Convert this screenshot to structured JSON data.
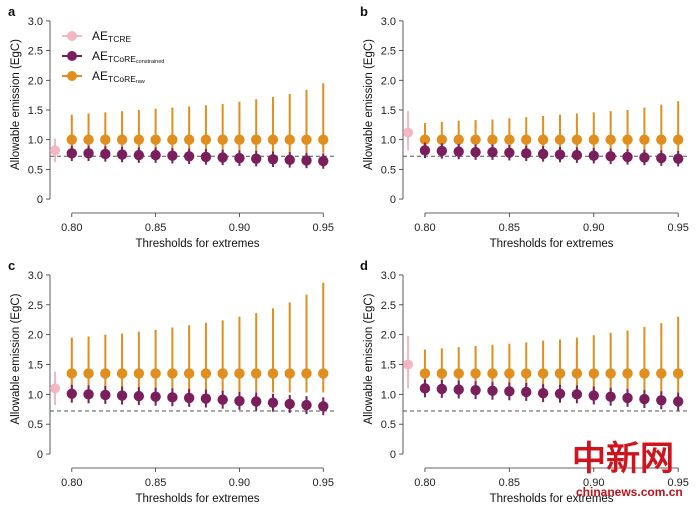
{
  "colors": {
    "tcre": "#f4b6c2",
    "constrained": "#7a1f5c",
    "raw": "#e08e1e",
    "reference_line": "#555555",
    "axis": "#333333"
  },
  "watermark": {
    "chinese": "中新网",
    "url": "chinanews.com.cn"
  },
  "legend": {
    "items": [
      {
        "key": "tcre",
        "main": "AE",
        "sub": "TCRE",
        "sub_style": "normal",
        "color": "#f4b6c2"
      },
      {
        "key": "constrained",
        "main": "AE",
        "sub": "TCoRE",
        "subsub": "constrained",
        "color": "#7a1f5c"
      },
      {
        "key": "raw",
        "main": "AE",
        "sub": "TCoRE",
        "subsub": "raw",
        "color": "#e08e1e"
      }
    ]
  },
  "chart_data": [
    {
      "panel": "a",
      "type": "scatter",
      "xlabel": "Thresholds for extremes",
      "ylabel": "Allowable emission (EgC)",
      "xlim": [
        0.787,
        0.957
      ],
      "ylim": [
        -0.1,
        3.15
      ],
      "xticks": [
        "0.80",
        "0.85",
        "0.90",
        "0.95"
      ],
      "yticks": [
        "0",
        "0.5",
        "1.0",
        "1.5",
        "2.0",
        "2.5",
        "3.0"
      ],
      "reference_line": 0.72,
      "tcre": {
        "x": 0.79,
        "y": 0.82,
        "low": 0.62,
        "high": 1.02
      },
      "x": [
        0.8,
        0.805,
        0.81,
        0.815,
        0.82,
        0.825,
        0.83,
        0.835,
        0.84,
        0.845,
        0.85,
        0.855,
        0.86,
        0.865,
        0.87,
        0.875,
        0.88,
        0.885,
        0.89,
        0.895,
        0.9,
        0.905,
        0.91,
        0.915,
        0.92,
        0.925,
        0.93,
        0.935,
        0.94,
        0.945,
        0.95
      ],
      "series": [
        {
          "key": "raw",
          "values": [
            1.0,
            1.0,
            1.0,
            1.0,
            1.0,
            1.0,
            1.0,
            1.0,
            1.0,
            1.0,
            1.0,
            1.0,
            1.0,
            1.0,
            1.0,
            1.0,
            1.0,
            1.0,
            1.0,
            1.0,
            1.0,
            1.0,
            1.0,
            1.0,
            1.0,
            1.0,
            1.0,
            1.0,
            1.0,
            1.0,
            1.0
          ],
          "low": [
            0.78,
            0.78,
            0.78,
            0.78,
            0.78,
            0.78,
            0.78,
            0.78,
            0.78,
            0.78,
            0.78,
            0.78,
            0.78,
            0.78,
            0.78,
            0.78,
            0.78,
            0.78,
            0.78,
            0.78,
            0.78,
            0.78,
            0.78,
            0.78,
            0.78,
            0.78,
            0.78,
            0.78,
            0.78,
            0.78,
            0.78
          ],
          "high": [
            1.42,
            1.43,
            1.44,
            1.45,
            1.46,
            1.47,
            1.48,
            1.49,
            1.5,
            1.51,
            1.52,
            1.53,
            1.54,
            1.55,
            1.56,
            1.57,
            1.58,
            1.59,
            1.6,
            1.62,
            1.64,
            1.66,
            1.68,
            1.7,
            1.72,
            1.74,
            1.77,
            1.8,
            1.84,
            1.89,
            1.95
          ]
        },
        {
          "key": "constrained",
          "values": [
            0.77,
            0.77,
            0.77,
            0.76,
            0.76,
            0.75,
            0.75,
            0.75,
            0.74,
            0.74,
            0.74,
            0.73,
            0.73,
            0.73,
            0.72,
            0.72,
            0.71,
            0.71,
            0.7,
            0.7,
            0.69,
            0.69,
            0.68,
            0.68,
            0.67,
            0.67,
            0.66,
            0.66,
            0.65,
            0.65,
            0.64
          ],
          "low": [
            0.64,
            0.64,
            0.64,
            0.63,
            0.63,
            0.62,
            0.62,
            0.62,
            0.61,
            0.61,
            0.61,
            0.6,
            0.6,
            0.6,
            0.59,
            0.59,
            0.58,
            0.58,
            0.57,
            0.57,
            0.56,
            0.56,
            0.55,
            0.55,
            0.54,
            0.54,
            0.53,
            0.53,
            0.52,
            0.52,
            0.51
          ],
          "high": [
            0.9,
            0.9,
            0.9,
            0.89,
            0.89,
            0.88,
            0.88,
            0.88,
            0.87,
            0.87,
            0.87,
            0.86,
            0.86,
            0.86,
            0.85,
            0.85,
            0.84,
            0.84,
            0.83,
            0.83,
            0.82,
            0.82,
            0.81,
            0.81,
            0.8,
            0.8,
            0.79,
            0.79,
            0.78,
            0.78,
            0.77
          ]
        }
      ]
    },
    {
      "panel": "b",
      "type": "scatter",
      "xlabel": "Thresholds for extremes",
      "ylabel": "Allowable emission (EgC)",
      "xlim": [
        0.787,
        0.957
      ],
      "ylim": [
        -0.1,
        3.15
      ],
      "xticks": [
        "0.80",
        "0.85",
        "0.90",
        "0.95"
      ],
      "yticks": [
        "0",
        "0.5",
        "1.0",
        "1.5",
        "2.0",
        "2.5",
        "3.0"
      ],
      "reference_line": 0.72,
      "tcre": {
        "x": 0.79,
        "y": 1.12,
        "low": 0.82,
        "high": 1.48
      },
      "x": [
        0.8,
        0.805,
        0.81,
        0.815,
        0.82,
        0.825,
        0.83,
        0.835,
        0.84,
        0.845,
        0.85,
        0.855,
        0.86,
        0.865,
        0.87,
        0.875,
        0.88,
        0.885,
        0.89,
        0.895,
        0.9,
        0.905,
        0.91,
        0.915,
        0.92,
        0.925,
        0.93,
        0.935,
        0.94,
        0.945,
        0.95
      ],
      "series": [
        {
          "key": "raw",
          "values": [
            1.0,
            1.0,
            1.0,
            1.0,
            1.0,
            1.0,
            1.0,
            1.0,
            1.0,
            1.0,
            1.0,
            1.0,
            1.0,
            1.0,
            1.0,
            1.0,
            1.0,
            1.0,
            1.0,
            1.0,
            1.0,
            1.0,
            1.0,
            1.0,
            1.0,
            1.0,
            1.0,
            1.0,
            1.0,
            1.0,
            1.0
          ],
          "low": [
            0.78,
            0.78,
            0.78,
            0.78,
            0.78,
            0.78,
            0.78,
            0.78,
            0.78,
            0.78,
            0.78,
            0.78,
            0.78,
            0.78,
            0.78,
            0.78,
            0.78,
            0.78,
            0.78,
            0.78,
            0.78,
            0.78,
            0.78,
            0.78,
            0.78,
            0.78,
            0.78,
            0.78,
            0.78,
            0.78,
            0.78
          ],
          "high": [
            1.28,
            1.29,
            1.3,
            1.31,
            1.32,
            1.32,
            1.33,
            1.33,
            1.34,
            1.35,
            1.36,
            1.37,
            1.38,
            1.39,
            1.4,
            1.41,
            1.42,
            1.43,
            1.44,
            1.45,
            1.46,
            1.47,
            1.48,
            1.49,
            1.5,
            1.52,
            1.54,
            1.56,
            1.59,
            1.62,
            1.65
          ]
        },
        {
          "key": "constrained",
          "values": [
            0.82,
            0.82,
            0.81,
            0.81,
            0.8,
            0.8,
            0.79,
            0.79,
            0.79,
            0.78,
            0.78,
            0.78,
            0.77,
            0.77,
            0.76,
            0.76,
            0.75,
            0.75,
            0.74,
            0.74,
            0.73,
            0.73,
            0.72,
            0.72,
            0.71,
            0.71,
            0.7,
            0.7,
            0.69,
            0.69,
            0.68
          ],
          "low": [
            0.69,
            0.69,
            0.68,
            0.68,
            0.67,
            0.67,
            0.66,
            0.66,
            0.66,
            0.65,
            0.65,
            0.65,
            0.64,
            0.64,
            0.63,
            0.63,
            0.62,
            0.62,
            0.61,
            0.61,
            0.6,
            0.6,
            0.59,
            0.59,
            0.58,
            0.58,
            0.57,
            0.57,
            0.56,
            0.56,
            0.55
          ],
          "high": [
            0.95,
            0.95,
            0.94,
            0.94,
            0.93,
            0.93,
            0.92,
            0.92,
            0.92,
            0.91,
            0.91,
            0.91,
            0.9,
            0.9,
            0.89,
            0.89,
            0.88,
            0.88,
            0.87,
            0.87,
            0.86,
            0.86,
            0.85,
            0.85,
            0.84,
            0.84,
            0.83,
            0.83,
            0.82,
            0.82,
            0.81
          ]
        }
      ]
    },
    {
      "panel": "c",
      "type": "scatter",
      "xlabel": "Thresholds for extremes",
      "ylabel": "Allowable emission (EgC)",
      "xlim": [
        0.787,
        0.957
      ],
      "ylim": [
        -0.1,
        3.15
      ],
      "xticks": [
        "0.80",
        "0.85",
        "0.90",
        "0.95"
      ],
      "yticks": [
        "0",
        "0.5",
        "1.0",
        "1.5",
        "2.0",
        "2.5",
        "3.0"
      ],
      "reference_line": 0.72,
      "tcre": {
        "x": 0.79,
        "y": 1.1,
        "low": 0.82,
        "high": 1.38
      },
      "x": [
        0.8,
        0.805,
        0.81,
        0.815,
        0.82,
        0.825,
        0.83,
        0.835,
        0.84,
        0.845,
        0.85,
        0.855,
        0.86,
        0.865,
        0.87,
        0.875,
        0.88,
        0.885,
        0.89,
        0.895,
        0.9,
        0.905,
        0.91,
        0.915,
        0.92,
        0.925,
        0.93,
        0.935,
        0.94,
        0.945,
        0.95
      ],
      "series": [
        {
          "key": "raw",
          "values": [
            1.35,
            1.35,
            1.35,
            1.35,
            1.35,
            1.35,
            1.35,
            1.35,
            1.35,
            1.35,
            1.35,
            1.35,
            1.35,
            1.35,
            1.35,
            1.35,
            1.35,
            1.35,
            1.35,
            1.35,
            1.35,
            1.35,
            1.35,
            1.35,
            1.35,
            1.35,
            1.35,
            1.35,
            1.35,
            1.35,
            1.35
          ],
          "low": [
            1.03,
            1.03,
            1.03,
            1.03,
            1.03,
            1.03,
            1.03,
            1.03,
            1.03,
            1.03,
            1.03,
            1.03,
            1.03,
            1.03,
            1.03,
            1.03,
            1.03,
            1.03,
            1.03,
            1.03,
            1.03,
            1.03,
            1.03,
            1.03,
            1.03,
            1.03,
            1.03,
            1.03,
            1.03,
            1.03,
            1.03
          ],
          "high": [
            1.95,
            1.96,
            1.97,
            1.99,
            2.0,
            2.01,
            2.02,
            2.04,
            2.05,
            2.07,
            2.08,
            2.1,
            2.12,
            2.14,
            2.16,
            2.18,
            2.2,
            2.22,
            2.24,
            2.27,
            2.3,
            2.33,
            2.36,
            2.4,
            2.44,
            2.49,
            2.54,
            2.6,
            2.67,
            2.76,
            2.87
          ]
        },
        {
          "key": "constrained",
          "values": [
            1.01,
            1.01,
            1.0,
            1.0,
            0.99,
            0.99,
            0.98,
            0.98,
            0.97,
            0.97,
            0.96,
            0.96,
            0.95,
            0.95,
            0.94,
            0.94,
            0.93,
            0.92,
            0.91,
            0.9,
            0.89,
            0.89,
            0.88,
            0.87,
            0.86,
            0.85,
            0.84,
            0.83,
            0.82,
            0.81,
            0.8
          ],
          "low": [
            0.86,
            0.86,
            0.85,
            0.85,
            0.84,
            0.84,
            0.83,
            0.83,
            0.82,
            0.82,
            0.81,
            0.81,
            0.8,
            0.8,
            0.79,
            0.79,
            0.78,
            0.77,
            0.76,
            0.75,
            0.74,
            0.74,
            0.73,
            0.72,
            0.71,
            0.7,
            0.69,
            0.68,
            0.67,
            0.66,
            0.65
          ],
          "high": [
            1.16,
            1.16,
            1.15,
            1.15,
            1.14,
            1.14,
            1.13,
            1.13,
            1.12,
            1.12,
            1.11,
            1.11,
            1.1,
            1.1,
            1.09,
            1.09,
            1.08,
            1.07,
            1.06,
            1.05,
            1.04,
            1.04,
            1.03,
            1.02,
            1.01,
            1.0,
            0.99,
            0.98,
            0.97,
            0.96,
            0.95
          ]
        }
      ]
    },
    {
      "panel": "d",
      "type": "scatter",
      "xlabel": "Thresholds for extremes",
      "ylabel": "Allowable emission (EgC)",
      "xlim": [
        0.787,
        0.957
      ],
      "ylim": [
        -0.1,
        3.15
      ],
      "xticks": [
        "0.80",
        "0.85",
        "0.90",
        "0.95"
      ],
      "yticks": [
        "0",
        "0.5",
        "1.0",
        "1.5",
        "2.0",
        "2.5",
        "3.0"
      ],
      "reference_line": 0.72,
      "tcre": {
        "x": 0.79,
        "y": 1.5,
        "low": 1.1,
        "high": 1.98
      },
      "x": [
        0.8,
        0.805,
        0.81,
        0.815,
        0.82,
        0.825,
        0.83,
        0.835,
        0.84,
        0.845,
        0.85,
        0.855,
        0.86,
        0.865,
        0.87,
        0.875,
        0.88,
        0.885,
        0.89,
        0.895,
        0.9,
        0.905,
        0.91,
        0.915,
        0.92,
        0.925,
        0.93,
        0.935,
        0.94,
        0.945,
        0.95
      ],
      "series": [
        {
          "key": "raw",
          "values": [
            1.35,
            1.35,
            1.35,
            1.35,
            1.35,
            1.35,
            1.35,
            1.35,
            1.35,
            1.35,
            1.35,
            1.35,
            1.35,
            1.35,
            1.35,
            1.35,
            1.35,
            1.35,
            1.35,
            1.35,
            1.35,
            1.35,
            1.35,
            1.35,
            1.35,
            1.35,
            1.35,
            1.35,
            1.35,
            1.35,
            1.35
          ],
          "low": [
            1.03,
            1.03,
            1.03,
            1.03,
            1.03,
            1.03,
            1.03,
            1.03,
            1.03,
            1.03,
            1.03,
            1.03,
            1.03,
            1.03,
            1.03,
            1.03,
            1.03,
            1.03,
            1.03,
            1.03,
            1.03,
            1.03,
            1.03,
            1.03,
            1.03,
            1.03,
            1.03,
            1.03,
            1.03,
            1.03,
            1.03
          ],
          "high": [
            1.75,
            1.76,
            1.77,
            1.78,
            1.79,
            1.8,
            1.81,
            1.82,
            1.83,
            1.84,
            1.85,
            1.86,
            1.87,
            1.88,
            1.9,
            1.91,
            1.92,
            1.94,
            1.95,
            1.97,
            1.99,
            2.01,
            2.03,
            2.05,
            2.07,
            2.1,
            2.13,
            2.16,
            2.19,
            2.23,
            2.3
          ]
        },
        {
          "key": "constrained",
          "values": [
            1.1,
            1.09,
            1.09,
            1.08,
            1.08,
            1.07,
            1.07,
            1.06,
            1.06,
            1.05,
            1.05,
            1.04,
            1.04,
            1.03,
            1.02,
            1.02,
            1.01,
            1.0,
            1.0,
            0.99,
            0.98,
            0.97,
            0.96,
            0.95,
            0.94,
            0.93,
            0.92,
            0.91,
            0.9,
            0.89,
            0.88
          ],
          "low": [
            0.95,
            0.94,
            0.94,
            0.93,
            0.93,
            0.92,
            0.92,
            0.91,
            0.91,
            0.9,
            0.9,
            0.89,
            0.89,
            0.88,
            0.87,
            0.87,
            0.86,
            0.85,
            0.85,
            0.84,
            0.83,
            0.82,
            0.81,
            0.8,
            0.79,
            0.78,
            0.77,
            0.76,
            0.75,
            0.74,
            0.73
          ],
          "high": [
            1.25,
            1.24,
            1.24,
            1.23,
            1.23,
            1.22,
            1.22,
            1.21,
            1.21,
            1.2,
            1.2,
            1.19,
            1.19,
            1.18,
            1.17,
            1.17,
            1.16,
            1.15,
            1.15,
            1.14,
            1.13,
            1.12,
            1.11,
            1.1,
            1.09,
            1.08,
            1.07,
            1.06,
            1.05,
            1.04,
            1.03
          ]
        }
      ]
    }
  ]
}
